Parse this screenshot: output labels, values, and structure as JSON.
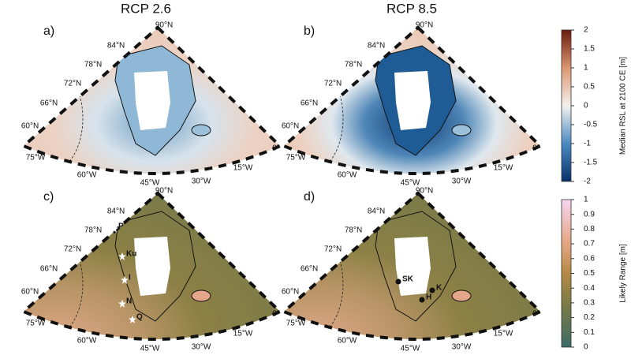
{
  "panel_titles": [
    "RCP 2.6",
    "RCP 8.5"
  ],
  "panels": [
    {
      "label": "a)"
    },
    {
      "label": "b)"
    },
    {
      "label": "c)",
      "stations": [
        "P",
        "Ku",
        "I",
        "N",
        "Q"
      ]
    },
    {
      "label": "d)",
      "stations": [
        "SK",
        "K",
        "H"
      ]
    }
  ],
  "latitude_labels": [
    "90°N",
    "84°N",
    "78°N",
    "72°N",
    "66°N",
    "60°N"
  ],
  "longitude_labels": [
    "75°W",
    "60°W",
    "45°W",
    "30°W",
    "15°W",
    "0°"
  ],
  "colorbars": [
    {
      "label": "Median RSL at 2100 CE [m]",
      "lim": [
        -2,
        2
      ],
      "ticks": [
        -2,
        -1.5,
        -1,
        -0.5,
        0,
        0.5,
        1,
        1.5,
        2
      ]
    },
    {
      "label": "Likely Range [m]",
      "lim": [
        0,
        1
      ],
      "ticks": [
        0,
        0.1,
        0.2,
        0.3,
        0.4,
        0.5,
        0.6,
        0.7,
        0.8,
        0.9,
        1
      ]
    }
  ]
}
